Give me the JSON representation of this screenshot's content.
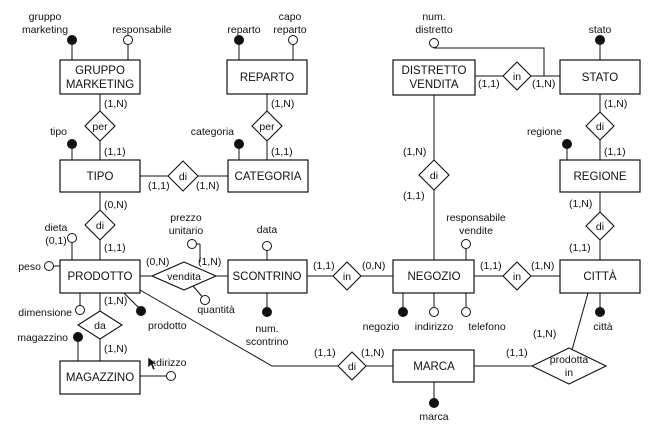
{
  "entities": {
    "gruppo_marketing": [
      "GRUPPO",
      "MARKETING"
    ],
    "reparto": "REPARTO",
    "distretto_vendita": [
      "DISTRETTO",
      "VENDITA"
    ],
    "stato": "STATO",
    "tipo": "TIPO",
    "categoria": "CATEGORIA",
    "regione": "REGIONE",
    "prodotto": "PRODOTTO",
    "scontrino": "SCONTRINO",
    "negozio": "NEGOZIO",
    "citta": "CITTÀ",
    "magazzino": "MAGAZZINO",
    "marca": "MARCA"
  },
  "relationships": {
    "per_gm": "per",
    "per_rep": "per",
    "in_dist": "in",
    "di_reg": "di",
    "di_tipo_cat": "di",
    "di_dist_neg": "di",
    "di_citta": "di",
    "di_tipo_prod": "di",
    "vendita": "vendita",
    "in_scontr_neg": "in",
    "in_neg_citta": "in",
    "da": "da",
    "di_marca": "di",
    "prodotta_in": [
      "prodotta",
      "in"
    ]
  },
  "attributes": {
    "gruppo_marketing": [
      "gruppo",
      "marketing"
    ],
    "responsabile": "responsabile",
    "reparto": "reparto",
    "capo_reparto": [
      "capo",
      "reparto"
    ],
    "num_distretto": [
      "num.",
      "distretto"
    ],
    "stato": "stato",
    "tipo": "tipo",
    "categoria": "categoria",
    "regione": "regione",
    "dieta": "dieta",
    "dieta_card": "(0,1)",
    "prezzo_unitario": [
      "prezzo",
      "unitario"
    ],
    "data": "data",
    "responsabile_vendite": [
      "responsabile",
      "vendite"
    ],
    "peso": "peso",
    "quantita": "quantità",
    "dimensione": "dimensione",
    "prodotto": "prodotto",
    "magazzino": "magazzino",
    "indirizzo_mag": "indirizzo",
    "num_scontrino": [
      "num.",
      "scontrino"
    ],
    "negozio": "negozio",
    "indirizzo_neg": "indirizzo",
    "telefono": "telefono",
    "citta": "città",
    "marca": "marca"
  },
  "cardinalities": {
    "gm_per": "(1,N)",
    "tipo_per": "(1,1)",
    "rep_per": "(1,N)",
    "cat_per": "(1,1)",
    "dist_in": "(1,1)",
    "stato_in": "(1,N)",
    "stato_di": "(1,N)",
    "reg_di_top": "(1,1)",
    "tipo_di": "(1,1)",
    "cat_di": "(1,N)",
    "dist_di": "(1,N)",
    "neg_di": "(1,1)",
    "reg_di_bot": "(1,N)",
    "citta_di": "(1,1)",
    "tipo_prod_di": "(0,N)",
    "prod_di": "(1,1)",
    "prod_vendita": "(0,N)",
    "scontr_vendita": "(1,N)",
    "scontr_in": "(1,1)",
    "neg_in": "(0,N)",
    "neg_in_citta": "(1,1)",
    "citta_in": "(1,N)",
    "prod_da": "(1,N)",
    "mag_da": "(1,N)",
    "prod_marca_di": "(1,1)",
    "marca_di": "(1,N)",
    "marca_prodotta": "(1,1)",
    "citta_prodotta": "(1,N)"
  }
}
